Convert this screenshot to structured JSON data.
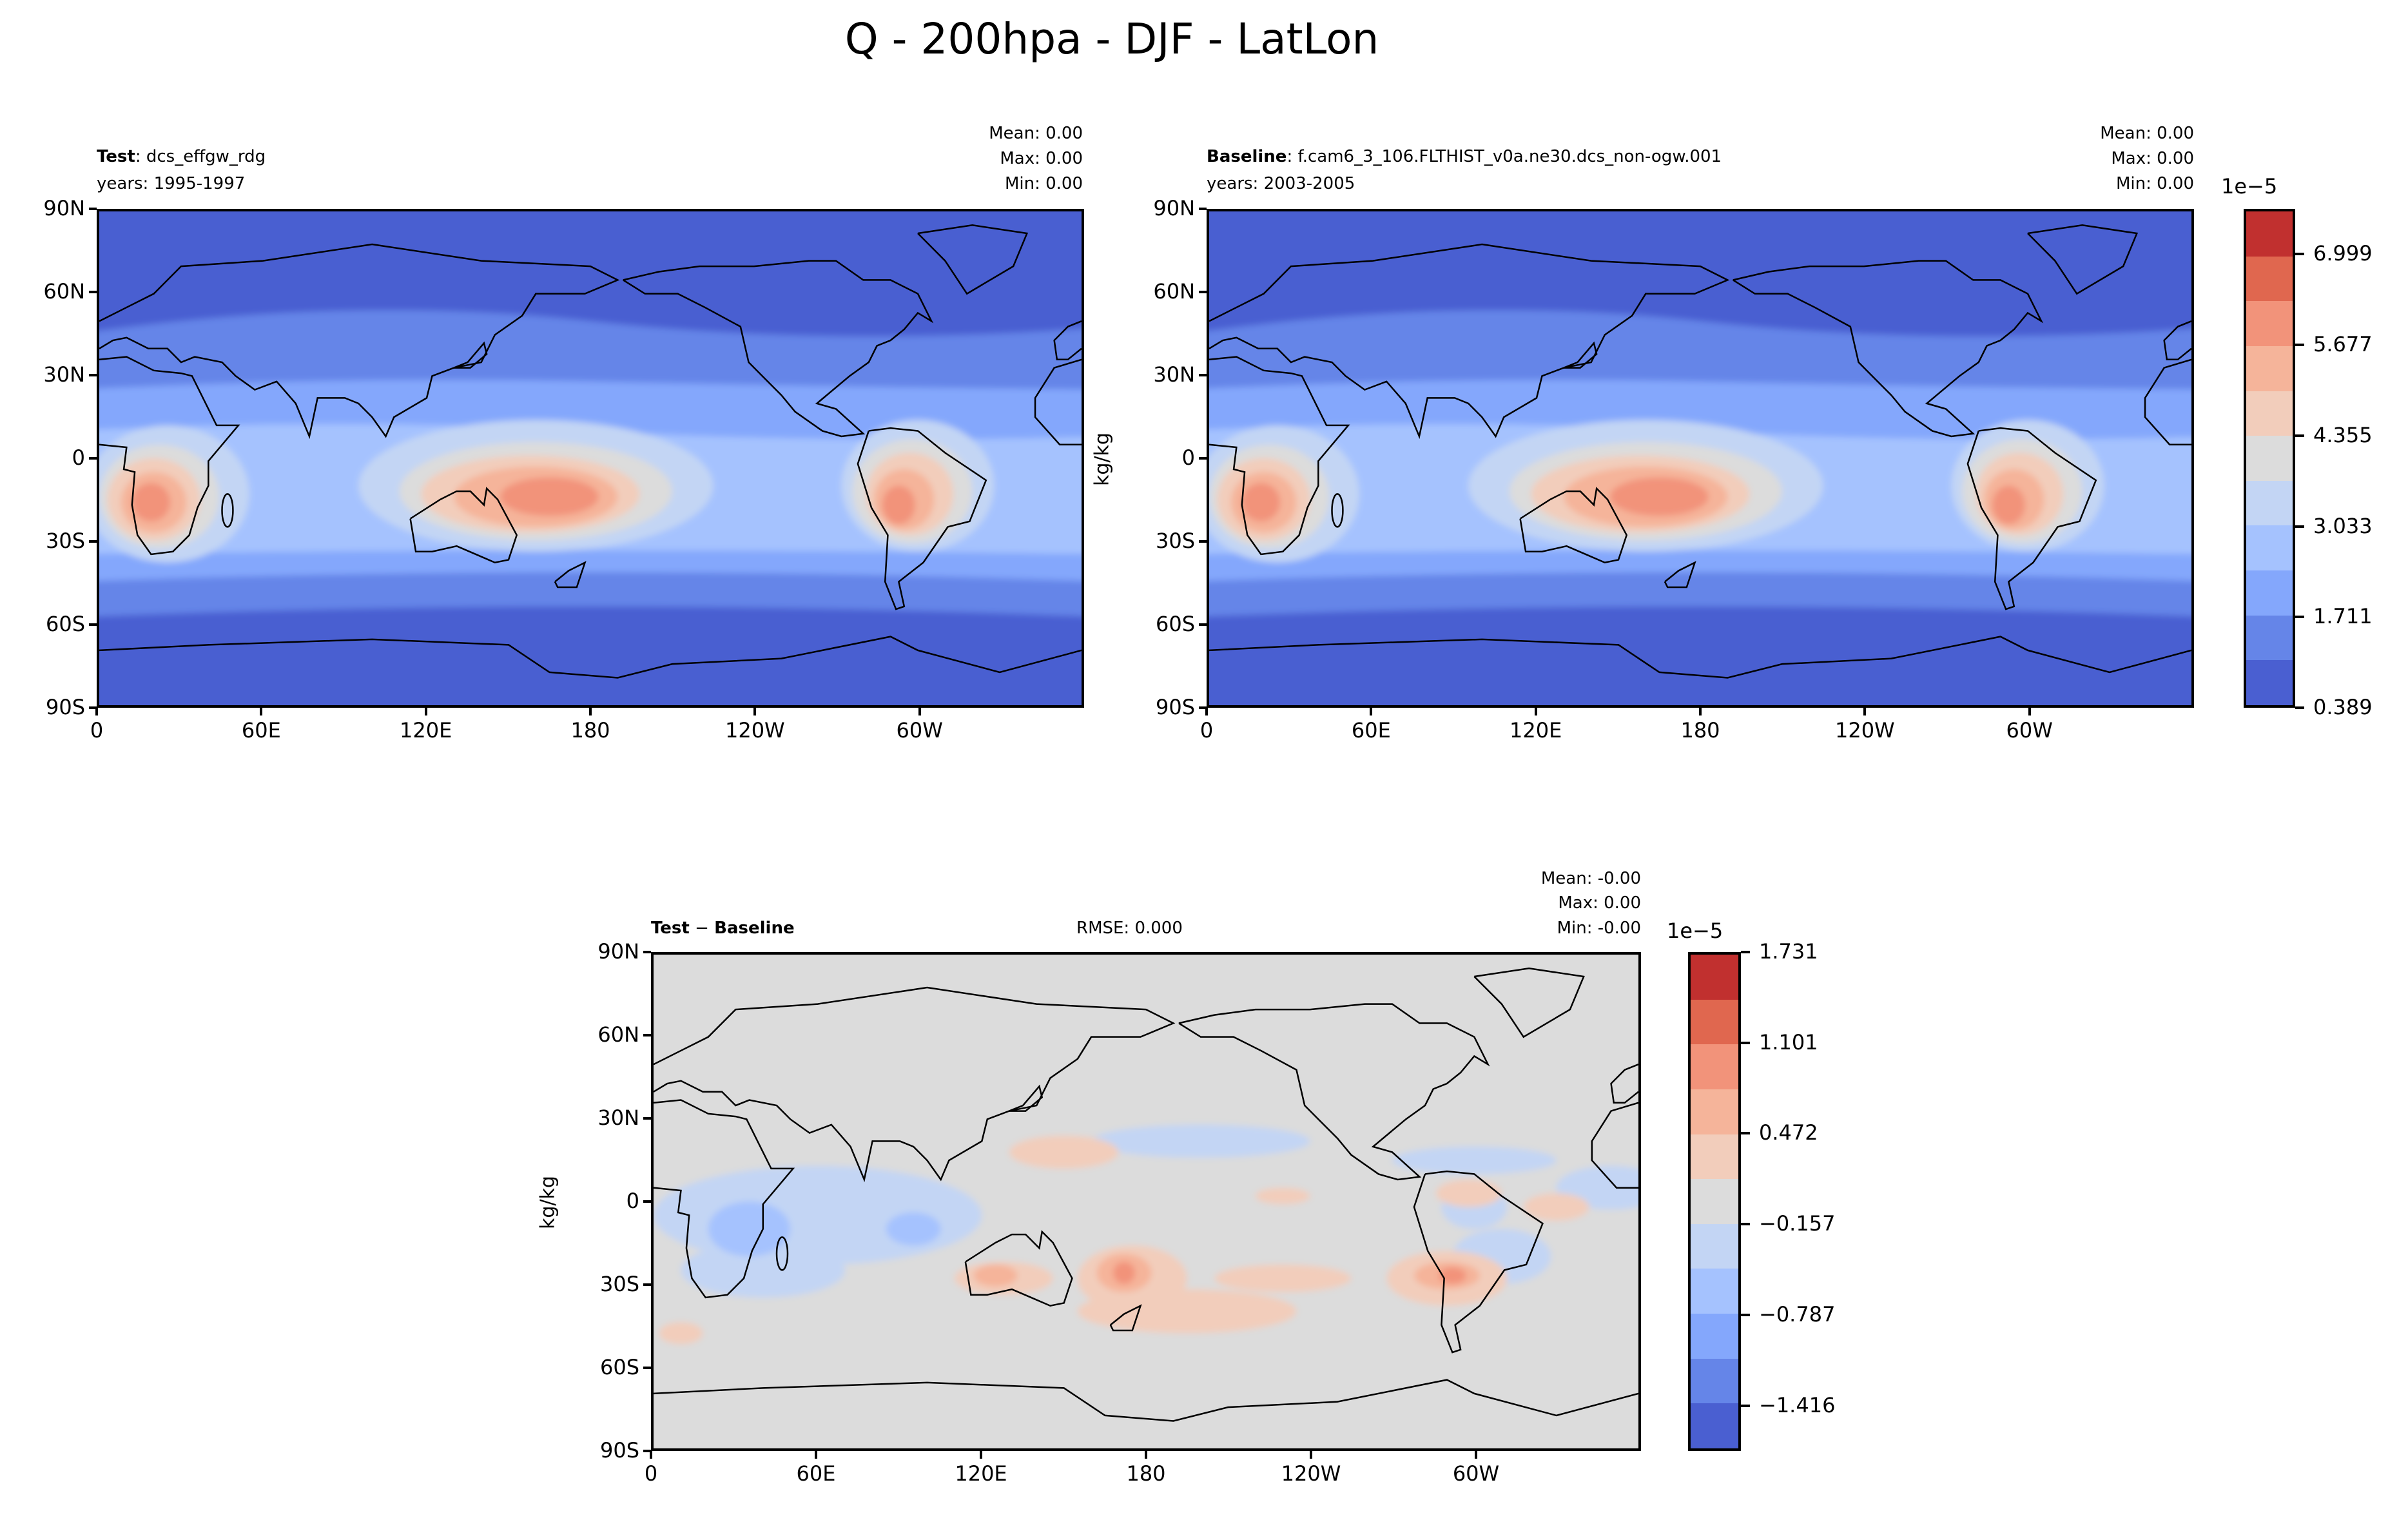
{
  "title": "Q - 200hpa - DJF - LatLon",
  "panels": [
    {
      "label_bold": "Test",
      "label_rest": ": dcs_effgw_rdg",
      "years": "years: 1995-1997",
      "mean": "Mean:  0.00",
      "max": "Max:  0.00",
      "min": "Min:  0.00",
      "ylabel": ""
    },
    {
      "label_bold": "Baseline",
      "label_rest": ": f.cam6_3_106.FLTHIST_v0a.ne30.dcs_non-ogw.001",
      "years": "years: 2003-2005",
      "mean": "Mean:  0.00",
      "max": "Max:  0.00",
      "min": "Min:  0.00",
      "ylabel": "kg/kg"
    },
    {
      "label_bold": "Test",
      "label_mid": " − ",
      "label_bold2": "Baseline",
      "rmse": "RMSE: 0.000",
      "mean": "Mean: -0.00",
      "max": "Max:  0.00",
      "min": "Min: -0.00",
      "ylabel": "kg/kg"
    }
  ],
  "axes": {
    "xticks": [
      "0",
      "60E",
      "120E",
      "180",
      "120W",
      "60W"
    ],
    "yticks": [
      "90N",
      "60N",
      "30N",
      "0",
      "30S",
      "60S",
      "90S"
    ]
  },
  "colorbars": [
    {
      "exponent": "1e−5",
      "ticks": [
        "0.389",
        "1.711",
        "3.033",
        "4.355",
        "5.677",
        "6.999"
      ]
    },
    {
      "exponent": "1e−5",
      "ticks": [
        "−1.416",
        "−0.787",
        "−0.157",
        "0.472",
        "1.101",
        "1.731"
      ]
    }
  ],
  "colors": [
    "#4a5fd1",
    "#6585e8",
    "#84a7fc",
    "#a5c2fe",
    "#c3d5f4",
    "#dcdcdc",
    "#f2cdbb",
    "#f5b49a",
    "#f2937a",
    "#e0674f",
    "#c1302f"
  ],
  "chart_data": [
    {
      "type": "heatmap",
      "title": "Test: dcs_effgw_rdg",
      "units": "kg/kg",
      "scale": "1e-5",
      "levels": [
        0.389,
        1.711,
        3.033,
        4.355,
        5.677,
        6.999
      ],
      "xlim": [
        0,
        360
      ],
      "ylim": [
        -90,
        90
      ]
    },
    {
      "type": "heatmap",
      "title": "Baseline: f.cam6_3_106.FLTHIST_v0a.ne30.dcs_non-ogw.001",
      "units": "kg/kg",
      "scale": "1e-5",
      "levels": [
        0.389,
        1.711,
        3.033,
        4.355,
        5.677,
        6.999
      ],
      "xlim": [
        0,
        360
      ],
      "ylim": [
        -90,
        90
      ]
    },
    {
      "type": "heatmap",
      "title": "Test - Baseline",
      "units": "kg/kg",
      "scale": "1e-5",
      "levels": [
        -1.416,
        -0.787,
        -0.157,
        0.472,
        1.101,
        1.731
      ],
      "xlim": [
        0,
        360
      ],
      "ylim": [
        -90,
        90
      ]
    }
  ]
}
